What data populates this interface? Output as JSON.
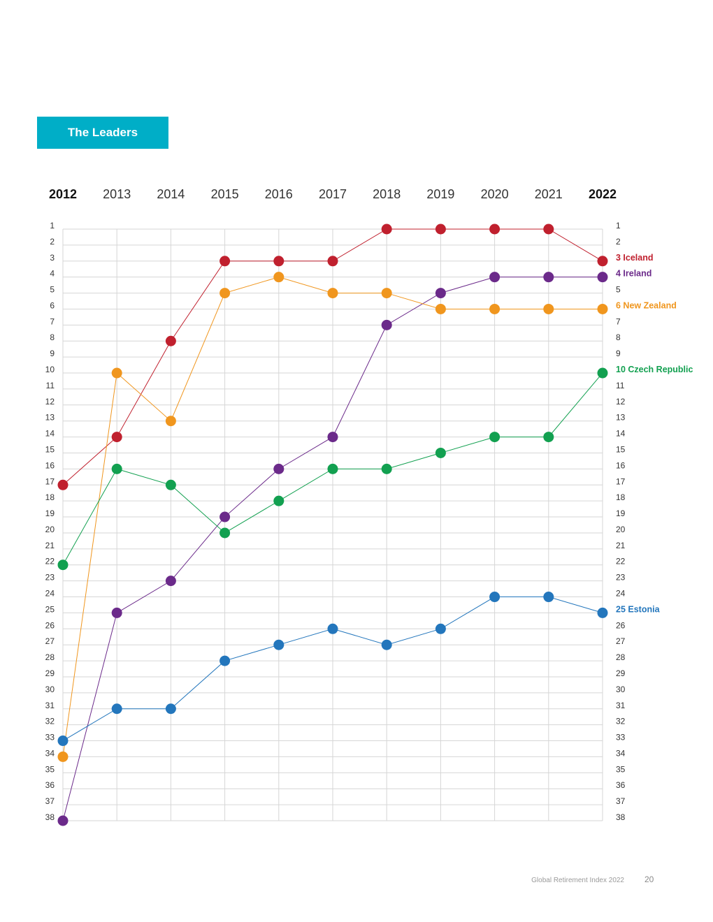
{
  "header": {
    "badge_label": "The Leaders"
  },
  "footer": {
    "document_title": "Global Retirement Index 2022",
    "page_number": "20"
  },
  "chart_data": {
    "type": "line",
    "title": "The Leaders",
    "x": [
      "2012",
      "2013",
      "2014",
      "2015",
      "2016",
      "2017",
      "2018",
      "2019",
      "2020",
      "2021",
      "2022"
    ],
    "bold_years": [
      "2012",
      "2022"
    ],
    "y_ticks": [
      "1",
      "2",
      "3",
      "4",
      "5",
      "6",
      "7",
      "8",
      "9",
      "10",
      "11",
      "12",
      "13",
      "14",
      "15",
      "16",
      "17",
      "18",
      "19",
      "20",
      "21",
      "22",
      "23",
      "24",
      "25",
      "26",
      "27",
      "28",
      "29",
      "30",
      "31",
      "32",
      "33",
      "34",
      "35",
      "36",
      "37",
      "38"
    ],
    "ylim": [
      1,
      38
    ],
    "y_inverted": true,
    "grid": true,
    "series": [
      {
        "name": "Iceland",
        "label": "3 Iceland",
        "color": "#c0202e",
        "values": [
          17,
          14,
          8,
          3,
          3,
          3,
          1,
          1,
          1,
          1,
          3
        ]
      },
      {
        "name": "Ireland",
        "label": "4 Ireland",
        "color": "#6b2a8a",
        "values": [
          38,
          25,
          23,
          19,
          16,
          14,
          7,
          5,
          4,
          4,
          4
        ]
      },
      {
        "name": "New Zealand",
        "label": "6 New Zealand",
        "color": "#f0961e",
        "values": [
          34,
          10,
          13,
          5,
          4,
          5,
          5,
          6,
          6,
          6,
          6
        ]
      },
      {
        "name": "Czech Republic",
        "label": "10 Czech Republic",
        "color": "#12a050",
        "values": [
          22,
          16,
          17,
          20,
          18,
          16,
          16,
          15,
          14,
          14,
          10
        ]
      },
      {
        "name": "Estonia",
        "label": "25 Estonia",
        "color": "#2376bc",
        "values": [
          33,
          31,
          31,
          28,
          27,
          26,
          27,
          26,
          24,
          24,
          25
        ]
      }
    ]
  }
}
